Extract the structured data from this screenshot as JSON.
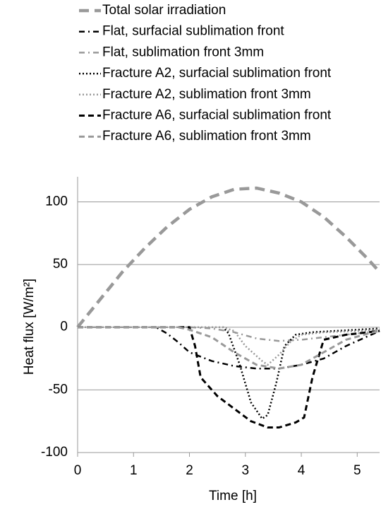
{
  "chart_data": {
    "type": "line",
    "xlabel": "Time [h]",
    "ylabel": "Heat flux [W/m²]",
    "xlim": [
      0,
      5.4
    ],
    "ylim": [
      -100,
      120
    ],
    "xticks": [
      0,
      1,
      2,
      3,
      4,
      5
    ],
    "yticks": [
      -100,
      -50,
      0,
      50,
      100
    ],
    "grid": true,
    "legend": "top",
    "series": [
      {
        "name": "Total solar irradiation",
        "color": "#999999",
        "dash": "longdash",
        "x": [
          0,
          0.4,
          0.8,
          1.2,
          1.6,
          2.0,
          2.4,
          2.8,
          3.2,
          3.6,
          4.0,
          4.4,
          4.8,
          5.2,
          5.4
        ],
        "values": [
          0,
          22,
          44,
          63,
          80,
          94,
          104,
          110,
          111,
          107,
          100,
          88,
          72,
          54,
          44
        ]
      },
      {
        "name": "Flat, surfacial sublimation front",
        "color": "#000000",
        "dash": "dashdot",
        "x": [
          0,
          1.4,
          1.6,
          1.8,
          2.0,
          2.4,
          2.8,
          3.2,
          3.6,
          4.0,
          4.4,
          4.8,
          5.2,
          5.4
        ],
        "values": [
          0,
          0,
          -5,
          -12,
          -20,
          -27,
          -31,
          -33,
          -33,
          -30,
          -25,
          -15,
          -7,
          -3
        ]
      },
      {
        "name": "Flat, sublimation front 3mm",
        "color": "#999999",
        "dash": "dashdot",
        "x": [
          0,
          2.0,
          2.4,
          2.8,
          3.2,
          3.6,
          4.0,
          4.4,
          4.8,
          5.2,
          5.4
        ],
        "values": [
          0,
          0,
          -1,
          -4,
          -9,
          -11,
          -10,
          -8,
          -6,
          -4,
          -2
        ]
      },
      {
        "name": "Fracture A2, surfacial sublimation front",
        "color": "#000000",
        "dash": "dot",
        "x": [
          0,
          2.6,
          2.7,
          2.9,
          3.1,
          3.3,
          3.4,
          3.55,
          3.7,
          3.9,
          4.2,
          4.6,
          5.0,
          5.4
        ],
        "values": [
          0,
          0,
          -5,
          -30,
          -60,
          -73,
          -70,
          -45,
          -15,
          -6,
          -4,
          -3,
          -2,
          -1
        ]
      },
      {
        "name": "Fracture A2, sublimation front 3mm",
        "color": "#999999",
        "dash": "dot",
        "x": [
          0,
          2.6,
          2.8,
          3.0,
          3.3,
          3.4,
          3.6,
          3.8,
          4.0,
          4.4,
          5.0,
          5.4
        ],
        "values": [
          0,
          0,
          -3,
          -15,
          -27,
          -30,
          -22,
          -12,
          -6,
          -4,
          -3,
          -2
        ]
      },
      {
        "name": "Fracture A6, surfacial sublimation front",
        "color": "#000000",
        "dash": "dash",
        "x": [
          0,
          2.0,
          2.1,
          2.2,
          2.5,
          2.8,
          3.1,
          3.4,
          3.6,
          3.9,
          4.05,
          4.2,
          4.4,
          4.8,
          5.2,
          5.4
        ],
        "values": [
          0,
          0,
          -15,
          -40,
          -55,
          -65,
          -75,
          -80,
          -80,
          -76,
          -72,
          -40,
          -10,
          -6,
          -4,
          -3
        ]
      },
      {
        "name": "Fracture A6, sublimation front 3mm",
        "color": "#999999",
        "dash": "dash",
        "x": [
          0,
          1.8,
          2.0,
          2.4,
          2.8,
          3.2,
          3.6,
          4.0,
          4.4,
          4.8,
          5.2,
          5.4
        ],
        "values": [
          0,
          0,
          -2,
          -8,
          -20,
          -30,
          -33,
          -30,
          -20,
          -10,
          -5,
          -3
        ]
      }
    ]
  }
}
